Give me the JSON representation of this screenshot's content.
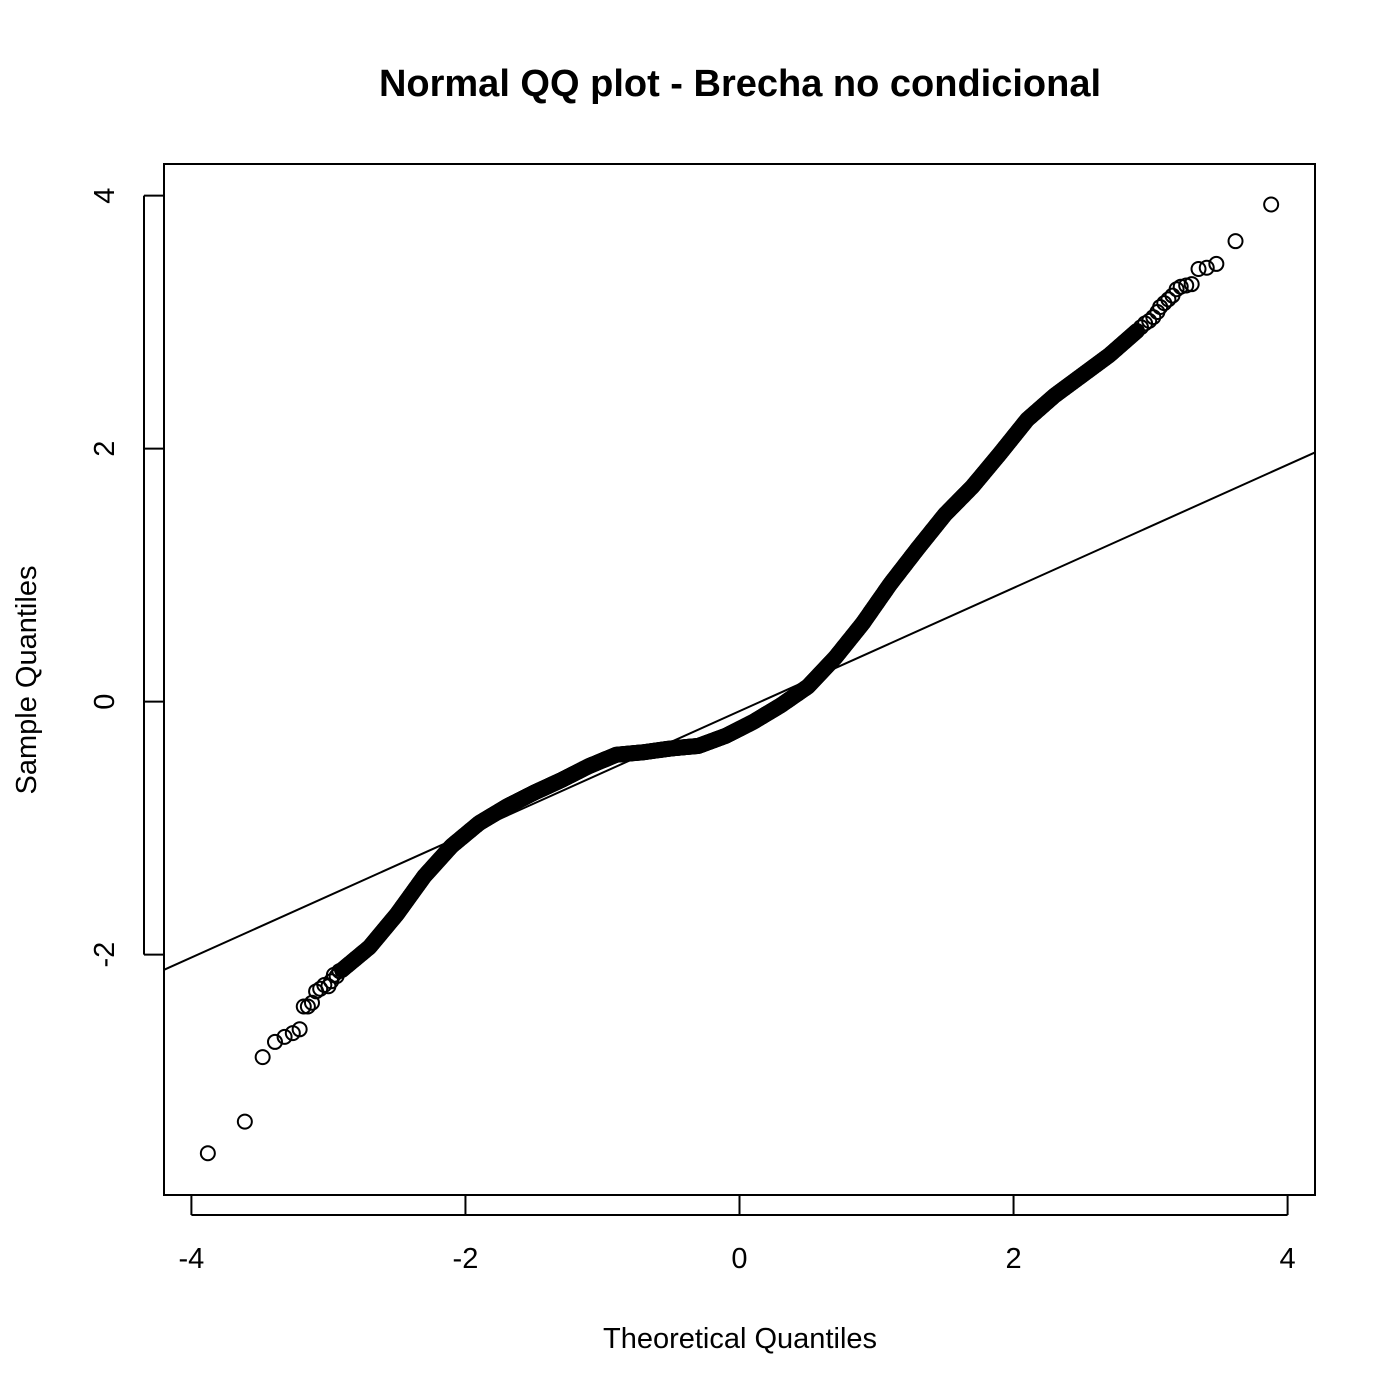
{
  "chart_data": {
    "type": "scatter",
    "title": "Normal QQ plot - Brecha no condicional",
    "xlabel": "Theoretical Quantiles",
    "ylabel": "Sample Quantiles",
    "xlim": [
      -4.2,
      4.2
    ],
    "ylim": [
      -3.9,
      4.25
    ],
    "x_ticks": [
      -4,
      -2,
      0,
      2,
      4
    ],
    "x_tick_labels": [
      "-4",
      "-2",
      "0",
      "2",
      "4"
    ],
    "y_ticks": [
      -2,
      0,
      2,
      4
    ],
    "y_tick_labels": [
      "-2",
      "0",
      "2",
      "4"
    ],
    "grid": false,
    "legend": "none",
    "marker": "open-circle",
    "reference_line": {
      "x": [
        -4.2,
        4.2
      ],
      "y": [
        -2.12,
        1.97
      ]
    },
    "tail_points": [
      [
        -3.88,
        -3.57
      ],
      [
        -3.61,
        -3.32
      ],
      [
        -3.48,
        -2.81
      ],
      [
        -3.39,
        -2.69
      ],
      [
        -3.32,
        -2.65
      ],
      [
        -3.26,
        -2.62
      ],
      [
        -3.21,
        -2.59
      ],
      [
        -3.18,
        -2.41
      ],
      [
        -3.15,
        -2.41
      ],
      [
        -3.12,
        -2.38
      ],
      [
        -3.09,
        -2.29
      ],
      [
        -3.06,
        -2.27
      ],
      [
        -3.03,
        -2.24
      ],
      [
        -3.0,
        -2.25
      ],
      [
        -2.98,
        -2.21
      ],
      [
        -2.96,
        -2.16
      ],
      [
        -2.94,
        -2.17
      ],
      [
        -2.92,
        -2.13
      ],
      [
        -2.9,
        -2.12
      ],
      [
        2.9,
        2.93
      ],
      [
        2.93,
        2.96
      ],
      [
        2.96,
        2.99
      ],
      [
        2.99,
        3.01
      ],
      [
        3.02,
        3.04
      ],
      [
        3.05,
        3.08
      ],
      [
        3.07,
        3.12
      ],
      [
        3.1,
        3.15
      ],
      [
        3.13,
        3.18
      ],
      [
        3.16,
        3.21
      ],
      [
        3.19,
        3.26
      ],
      [
        3.22,
        3.28
      ],
      [
        3.26,
        3.29
      ],
      [
        3.3,
        3.3
      ],
      [
        3.35,
        3.42
      ],
      [
        3.41,
        3.43
      ],
      [
        3.48,
        3.46
      ],
      [
        3.62,
        3.64
      ],
      [
        3.88,
        3.93
      ]
    ],
    "body_curve": [
      [
        -2.9,
        -2.12
      ],
      [
        -2.7,
        -1.94
      ],
      [
        -2.5,
        -1.68
      ],
      [
        -2.3,
        -1.38
      ],
      [
        -2.1,
        -1.14
      ],
      [
        -1.9,
        -0.96
      ],
      [
        -1.7,
        -0.83
      ],
      [
        -1.5,
        -0.72
      ],
      [
        -1.3,
        -0.62
      ],
      [
        -1.1,
        -0.51
      ],
      [
        -0.9,
        -0.42
      ],
      [
        -0.7,
        -0.4
      ],
      [
        -0.5,
        -0.37
      ],
      [
        -0.3,
        -0.35
      ],
      [
        -0.1,
        -0.27
      ],
      [
        0.1,
        -0.16
      ],
      [
        0.3,
        -0.03
      ],
      [
        0.5,
        0.12
      ],
      [
        0.7,
        0.35
      ],
      [
        0.9,
        0.62
      ],
      [
        1.1,
        0.93
      ],
      [
        1.3,
        1.21
      ],
      [
        1.5,
        1.48
      ],
      [
        1.7,
        1.7
      ],
      [
        1.9,
        1.96
      ],
      [
        2.1,
        2.23
      ],
      [
        2.3,
        2.42
      ],
      [
        2.5,
        2.58
      ],
      [
        2.7,
        2.74
      ],
      [
        2.9,
        2.93
      ]
    ],
    "body_sample_count": 900
  }
}
